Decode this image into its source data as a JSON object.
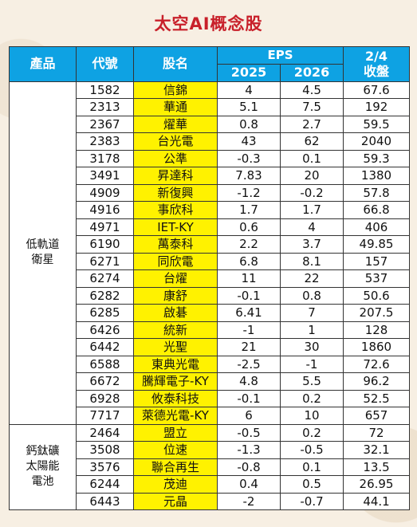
{
  "title": "太空AI概念股",
  "headers": {
    "product": "產品",
    "code": "代號",
    "name": "股名",
    "eps": "EPS",
    "year1": "2025",
    "year2": "2026",
    "close_line1": "2/4",
    "close_line2": "收盤"
  },
  "groups": [
    {
      "category_lines": [
        "低軌道",
        "衛星"
      ],
      "rows": [
        {
          "code": "1582",
          "name": "信錦",
          "eps2025": "4",
          "eps2026": "4.5",
          "close": "67.6"
        },
        {
          "code": "2313",
          "name": "華通",
          "eps2025": "5.1",
          "eps2026": "7.5",
          "close": "192"
        },
        {
          "code": "2367",
          "name": "燿華",
          "eps2025": "0.8",
          "eps2026": "2.7",
          "close": "59.5"
        },
        {
          "code": "2383",
          "name": "台光電",
          "eps2025": "43",
          "eps2026": "62",
          "close": "2040"
        },
        {
          "code": "3178",
          "name": "公準",
          "eps2025": "-0.3",
          "eps2026": "0.1",
          "close": "59.3"
        },
        {
          "code": "3491",
          "name": "昇達科",
          "eps2025": "7.83",
          "eps2026": "20",
          "close": "1380"
        },
        {
          "code": "4909",
          "name": "新復興",
          "eps2025": "-1.2",
          "eps2026": "-0.2",
          "close": "57.8"
        },
        {
          "code": "4916",
          "name": "事欣科",
          "eps2025": "1.7",
          "eps2026": "1.7",
          "close": "66.8"
        },
        {
          "code": "4971",
          "name": "IET-KY",
          "eps2025": "0.6",
          "eps2026": "4",
          "close": "406"
        },
        {
          "code": "6190",
          "name": "萬泰科",
          "eps2025": "2.2",
          "eps2026": "3.7",
          "close": "49.85"
        },
        {
          "code": "6271",
          "name": "同欣電",
          "eps2025": "6.8",
          "eps2026": "8.1",
          "close": "157"
        },
        {
          "code": "6274",
          "name": "台燿",
          "eps2025": "11",
          "eps2026": "22",
          "close": "537"
        },
        {
          "code": "6282",
          "name": "康舒",
          "eps2025": "-0.1",
          "eps2026": "0.8",
          "close": "50.6"
        },
        {
          "code": "6285",
          "name": "啟碁",
          "eps2025": "6.41",
          "eps2026": "7",
          "close": "207.5"
        },
        {
          "code": "6426",
          "name": "統新",
          "eps2025": "-1",
          "eps2026": "1",
          "close": "128"
        },
        {
          "code": "6442",
          "name": "光聖",
          "eps2025": "21",
          "eps2026": "30",
          "close": "1860"
        },
        {
          "code": "6588",
          "name": "東典光電",
          "eps2025": "-2.5",
          "eps2026": "-1",
          "close": "72.6"
        },
        {
          "code": "6672",
          "name": "騰輝電子-KY",
          "eps2025": "4.8",
          "eps2026": "5.5",
          "close": "96.2"
        },
        {
          "code": "6928",
          "name": "攸泰科技",
          "eps2025": "-0.1",
          "eps2026": "0.2",
          "close": "52.5"
        },
        {
          "code": "7717",
          "name": "萊德光電-KY",
          "eps2025": "6",
          "eps2026": "10",
          "close": "657"
        }
      ]
    },
    {
      "category_lines": [
        "鈣鈦礦",
        "太陽能",
        "電池"
      ],
      "rows": [
        {
          "code": "2464",
          "name": "盟立",
          "eps2025": "-0.5",
          "eps2026": "0.2",
          "close": "72"
        },
        {
          "code": "3508",
          "name": "位速",
          "eps2025": "-1.3",
          "eps2026": "-0.5",
          "close": "32.1"
        },
        {
          "code": "3576",
          "name": "聯合再生",
          "eps2025": "-0.8",
          "eps2026": "0.1",
          "close": "13.5"
        },
        {
          "code": "6244",
          "name": "茂迪",
          "eps2025": "0.4",
          "eps2026": "0.5",
          "close": "26.95"
        },
        {
          "code": "6443",
          "name": "元晶",
          "eps2025": "-2",
          "eps2026": "-0.7",
          "close": "44.1"
        }
      ]
    }
  ]
}
